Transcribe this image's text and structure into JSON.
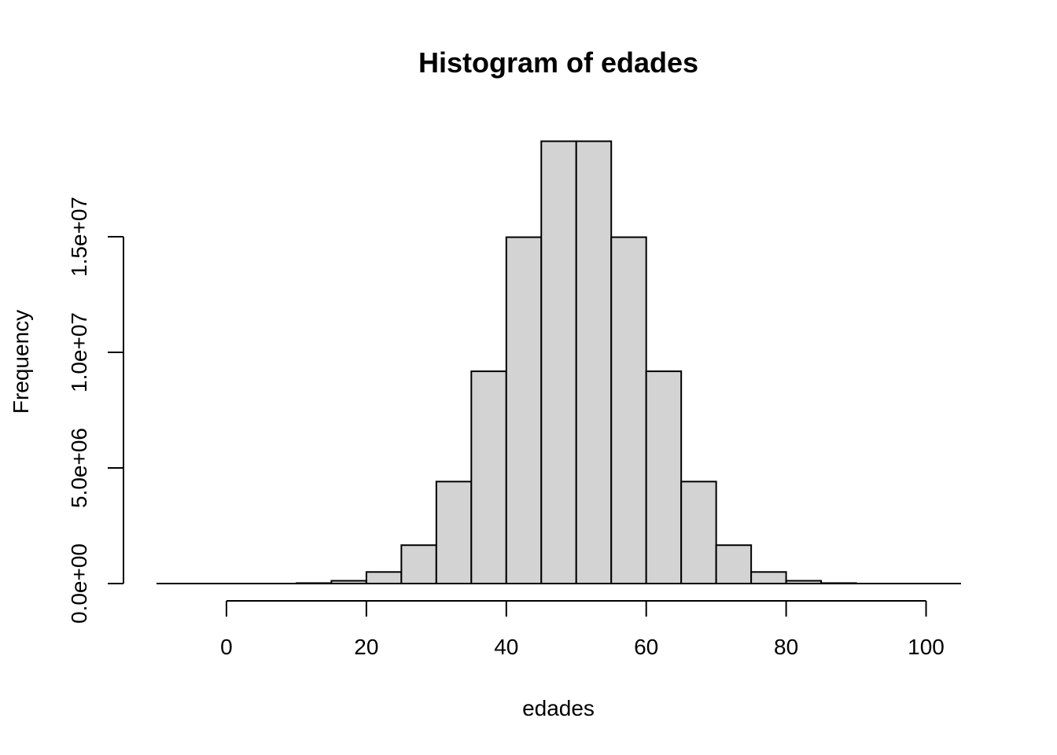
{
  "chart_data": {
    "type": "bar",
    "title": "Histogram of edades",
    "xlabel": "edades",
    "ylabel": "Frequency",
    "xlim": [
      -10,
      105
    ],
    "ylim": [
      0,
      19000000
    ],
    "x_ticks": [
      0,
      20,
      40,
      60,
      80,
      100
    ],
    "x_tick_labels": [
      "0",
      "20",
      "40",
      "60",
      "80",
      "100"
    ],
    "y_ticks": [
      0,
      5000000,
      10000000,
      15000000
    ],
    "y_tick_labels": [
      "0.0e+00",
      "5.0e+06",
      "1.0e+07",
      "1.5e+07"
    ],
    "bin_width": 5,
    "bins": [
      {
        "start": -10,
        "end": -5,
        "value": 0
      },
      {
        "start": -5,
        "end": 0,
        "value": 0
      },
      {
        "start": 0,
        "end": 5,
        "value": 0
      },
      {
        "start": 5,
        "end": 10,
        "value": 0
      },
      {
        "start": 10,
        "end": 15,
        "value": 20000
      },
      {
        "start": 15,
        "end": 20,
        "value": 120000
      },
      {
        "start": 20,
        "end": 25,
        "value": 500000
      },
      {
        "start": 25,
        "end": 30,
        "value": 1660000
      },
      {
        "start": 30,
        "end": 35,
        "value": 4410000
      },
      {
        "start": 35,
        "end": 40,
        "value": 9180000
      },
      {
        "start": 40,
        "end": 45,
        "value": 14980000
      },
      {
        "start": 45,
        "end": 50,
        "value": 19130000
      },
      {
        "start": 50,
        "end": 55,
        "value": 19130000
      },
      {
        "start": 55,
        "end": 60,
        "value": 14980000
      },
      {
        "start": 60,
        "end": 65,
        "value": 9180000
      },
      {
        "start": 65,
        "end": 70,
        "value": 4410000
      },
      {
        "start": 70,
        "end": 75,
        "value": 1660000
      },
      {
        "start": 75,
        "end": 80,
        "value": 500000
      },
      {
        "start": 80,
        "end": 85,
        "value": 120000
      },
      {
        "start": 85,
        "end": 90,
        "value": 20000
      },
      {
        "start": 90,
        "end": 95,
        "value": 0
      },
      {
        "start": 95,
        "end": 100,
        "value": 0
      },
      {
        "start": 100,
        "end": 105,
        "value": 0
      }
    ],
    "grid": false,
    "legend": "none"
  }
}
